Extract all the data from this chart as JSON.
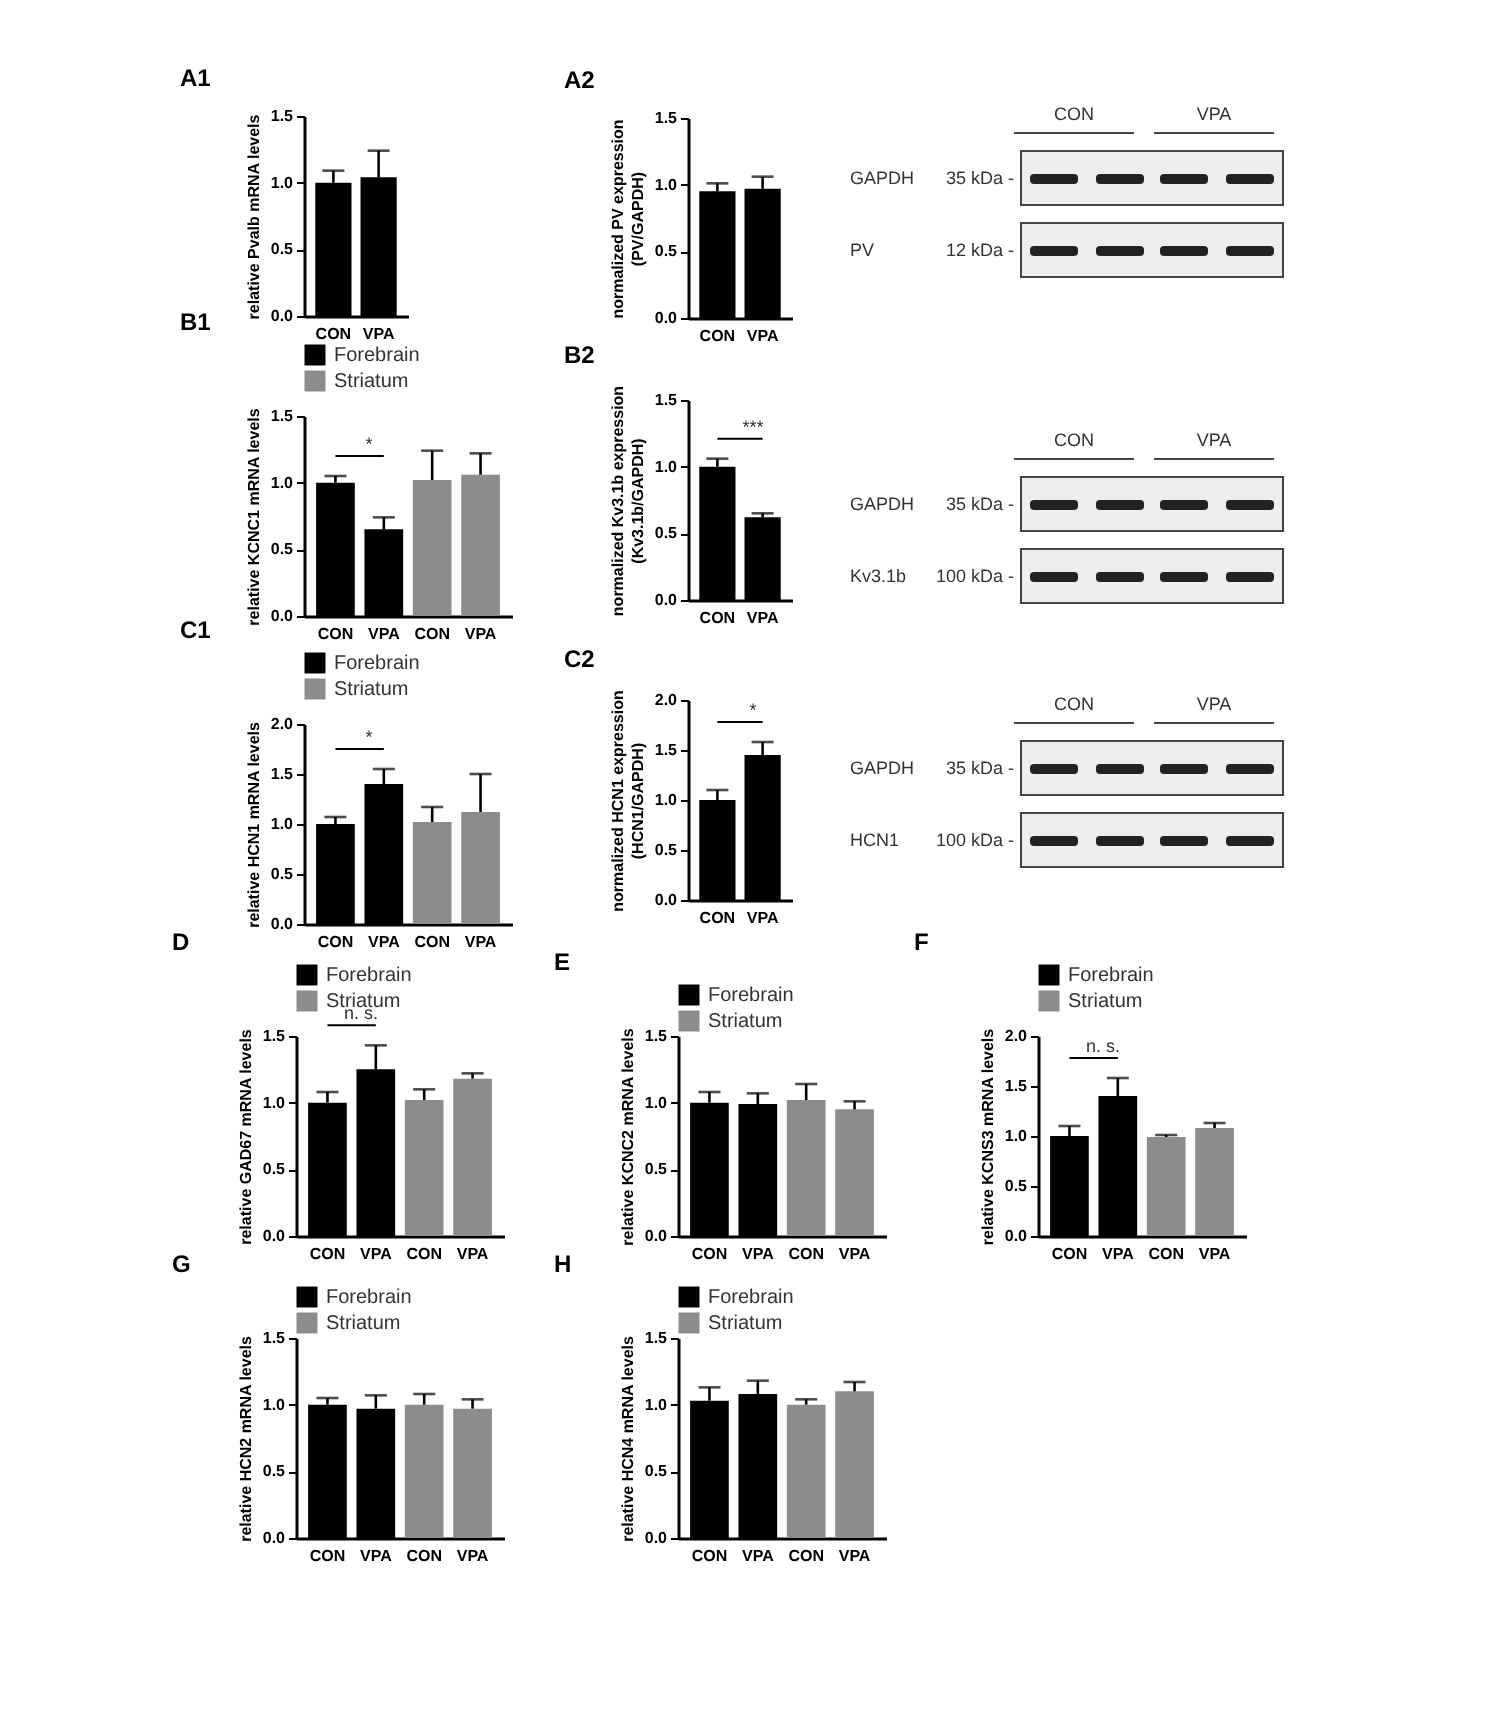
{
  "chart_data": [
    {
      "type": "bar",
      "title": "A1",
      "ylabel": "relative Pvalb mRNA levels",
      "categories": [
        "CON",
        "VPA"
      ],
      "ylim": [
        0,
        1.5
      ],
      "yticks": [
        {
          "value": 0,
          "label": "0.0"
        },
        {
          "value": 0.5,
          "label": "0.5"
        },
        {
          "value": 1,
          "label": "1.0"
        },
        {
          "value": 1.5,
          "label": "1.5"
        }
      ],
      "series": [
        {
          "color": "#000000",
          "values": [
            1.0,
            1.04
          ],
          "errors": [
            0.09,
            0.2
          ]
        }
      ]
    },
    {
      "type": "bar",
      "title": "A2",
      "ylabel": "normalized PV expression\n(PV/GAPDH)",
      "categories": [
        "CON",
        "VPA"
      ],
      "ylim": [
        0,
        1.5
      ],
      "yticks": [
        {
          "value": 0,
          "label": "0.0"
        },
        {
          "value": 0.5,
          "label": "0.5"
        },
        {
          "value": 1,
          "label": "1.0"
        },
        {
          "value": 1.5,
          "label": "1.5"
        }
      ],
      "series": [
        {
          "color": "#000000",
          "values": [
            0.95,
            0.97
          ],
          "errors": [
            0.06,
            0.09
          ]
        }
      ]
    },
    {
      "type": "other",
      "annotations": [
        "CON",
        "VPA",
        "GAPDH",
        "35 kDa -",
        "PV",
        "12 kDa -"
      ]
    },
    {
      "type": "bar",
      "title": "B1",
      "ylabel": "relative KCNC1 mRNA levels",
      "categories": [
        "CON",
        "VPA",
        "CON",
        "VPA"
      ],
      "ylim": [
        0,
        1.5
      ],
      "yticks": [
        {
          "value": 0,
          "label": "0.0"
        },
        {
          "value": 0.5,
          "label": "0.5"
        },
        {
          "value": 1,
          "label": "1.0"
        },
        {
          "value": 1.5,
          "label": "1.5"
        }
      ],
      "legend": "top",
      "annotations": [
        "*"
      ],
      "series": [
        {
          "name": "Forebrain",
          "color": "#000000",
          "values": [
            1.0,
            0.65,
            null,
            null
          ],
          "errors": [
            0.05,
            0.09,
            null,
            null
          ]
        },
        {
          "name": "Striatum",
          "color": "#8c8c8c",
          "values": [
            null,
            null,
            1.02,
            1.06
          ],
          "errors": [
            null,
            null,
            0.22,
            0.16
          ]
        }
      ]
    },
    {
      "type": "bar",
      "title": "B2",
      "ylabel": "normalized Kv3.1b expression\n(Kv3.1b/GAPDH)",
      "categories": [
        "CON",
        "VPA"
      ],
      "ylim": [
        0,
        1.5
      ],
      "yticks": [
        {
          "value": 0,
          "label": "0.0"
        },
        {
          "value": 0.5,
          "label": "0.5"
        },
        {
          "value": 1,
          "label": "1.0"
        },
        {
          "value": 1.5,
          "label": "1.5"
        }
      ],
      "annotations": [
        "***"
      ],
      "series": [
        {
          "color": "#000000",
          "values": [
            1.0,
            0.62
          ],
          "errors": [
            0.06,
            0.03
          ]
        }
      ]
    },
    {
      "type": "other",
      "annotations": [
        "CON",
        "VPA",
        "GAPDH",
        "35 kDa -",
        "Kv3.1b",
        "100 kDa -"
      ]
    },
    {
      "type": "bar",
      "title": "C1",
      "ylabel": "relative HCN1 mRNA levels",
      "categories": [
        "CON",
        "VPA",
        "CON",
        "VPA"
      ],
      "ylim": [
        0,
        2
      ],
      "yticks": [
        {
          "value": 0,
          "label": "0.0"
        },
        {
          "value": 0.5,
          "label": "0.5"
        },
        {
          "value": 1,
          "label": "1.0"
        },
        {
          "value": 1.5,
          "label": "1.5"
        },
        {
          "value": 2,
          "label": "2.0"
        }
      ],
      "legend": "top",
      "annotations": [
        "*"
      ],
      "series": [
        {
          "name": "Forebrain",
          "color": "#000000",
          "values": [
            1.0,
            1.4,
            null,
            null
          ],
          "errors": [
            0.07,
            0.15,
            null,
            null
          ]
        },
        {
          "name": "Striatum",
          "color": "#8c8c8c",
          "values": [
            null,
            null,
            1.02,
            1.12
          ],
          "errors": [
            null,
            null,
            0.15,
            0.38
          ]
        }
      ]
    },
    {
      "type": "bar",
      "title": "C2",
      "ylabel": "normalized HCN1 expression\n(HCN1/GAPDH)",
      "categories": [
        "CON",
        "VPA"
      ],
      "ylim": [
        0,
        2
      ],
      "yticks": [
        {
          "value": 0,
          "label": "0.0"
        },
        {
          "value": 0.5,
          "label": "0.5"
        },
        {
          "value": 1,
          "label": "1.0"
        },
        {
          "value": 1.5,
          "label": "1.5"
        },
        {
          "value": 2,
          "label": "2.0"
        }
      ],
      "annotations": [
        "*"
      ],
      "series": [
        {
          "color": "#000000",
          "values": [
            1.0,
            1.45
          ],
          "errors": [
            0.1,
            0.13
          ]
        }
      ]
    },
    {
      "type": "other",
      "annotations": [
        "CON",
        "VPA",
        "GAPDH",
        "35 kDa -",
        "HCN1",
        "100 kDa -"
      ]
    },
    {
      "type": "bar",
      "title": "D",
      "ylabel": "relative GAD67 mRNA levels",
      "categories": [
        "CON",
        "VPA",
        "CON",
        "VPA"
      ],
      "ylim": [
        0,
        1.5
      ],
      "yticks": [
        {
          "value": 0,
          "label": "0.0"
        },
        {
          "value": 0.5,
          "label": "0.5"
        },
        {
          "value": 1,
          "label": "1.0"
        },
        {
          "value": 1.5,
          "label": "1.5"
        }
      ],
      "legend": "top",
      "annotations": [
        "n. s."
      ],
      "series": [
        {
          "name": "Forebrain",
          "color": "#000000",
          "values": [
            1.0,
            1.25,
            null,
            null
          ],
          "errors": [
            0.08,
            0.18,
            null,
            null
          ]
        },
        {
          "name": "Striatum",
          "color": "#8c8c8c",
          "values": [
            null,
            null,
            1.02,
            1.18
          ],
          "errors": [
            null,
            null,
            0.08,
            0.04
          ]
        }
      ]
    },
    {
      "type": "bar",
      "title": "E",
      "ylabel": "relative KCNC2 mRNA levels",
      "categories": [
        "CON",
        "VPA",
        "CON",
        "VPA"
      ],
      "ylim": [
        0,
        1.5
      ],
      "yticks": [
        {
          "value": 0,
          "label": "0.0"
        },
        {
          "value": 0.5,
          "label": "0.5"
        },
        {
          "value": 1,
          "label": "1.0"
        },
        {
          "value": 1.5,
          "label": "1.5"
        }
      ],
      "legend": "top",
      "series": [
        {
          "name": "Forebrain",
          "color": "#000000",
          "values": [
            1.0,
            0.99,
            null,
            null
          ],
          "errors": [
            0.08,
            0.08,
            null,
            null
          ]
        },
        {
          "name": "Striatum",
          "color": "#8c8c8c",
          "values": [
            null,
            null,
            1.02,
            0.95
          ],
          "errors": [
            null,
            null,
            0.12,
            0.06
          ]
        }
      ]
    },
    {
      "type": "bar",
      "title": "F",
      "ylabel": "relative KCNS3 mRNA levels",
      "categories": [
        "CON",
        "VPA",
        "CON",
        "VPA"
      ],
      "ylim": [
        0,
        2
      ],
      "yticks": [
        {
          "value": 0,
          "label": "0.0"
        },
        {
          "value": 0.5,
          "label": "0.5"
        },
        {
          "value": 1,
          "label": "1.0"
        },
        {
          "value": 1.5,
          "label": "1.5"
        },
        {
          "value": 2,
          "label": "2.0"
        }
      ],
      "legend": "top",
      "annotations": [
        "n. s."
      ],
      "series": [
        {
          "name": "Forebrain",
          "color": "#000000",
          "values": [
            1.0,
            1.4,
            null,
            null
          ],
          "errors": [
            0.1,
            0.18,
            null,
            null
          ]
        },
        {
          "name": "Striatum",
          "color": "#8c8c8c",
          "values": [
            null,
            null,
            0.99,
            1.08
          ],
          "errors": [
            null,
            null,
            0.02,
            0.05
          ]
        }
      ]
    },
    {
      "type": "bar",
      "title": "G",
      "ylabel": "relative HCN2 mRNA levels",
      "categories": [
        "CON",
        "VPA",
        "CON",
        "VPA"
      ],
      "ylim": [
        0,
        1.5
      ],
      "yticks": [
        {
          "value": 0,
          "label": "0.0"
        },
        {
          "value": 0.5,
          "label": "0.5"
        },
        {
          "value": 1,
          "label": "1.0"
        },
        {
          "value": 1.5,
          "label": "1.5"
        }
      ],
      "legend": "top",
      "series": [
        {
          "name": "Forebrain",
          "color": "#000000",
          "values": [
            1.0,
            0.97,
            null,
            null
          ],
          "errors": [
            0.05,
            0.1,
            null,
            null
          ]
        },
        {
          "name": "Striatum",
          "color": "#8c8c8c",
          "values": [
            null,
            null,
            1.0,
            0.97
          ],
          "errors": [
            null,
            null,
            0.08,
            0.07
          ]
        }
      ]
    },
    {
      "type": "bar",
      "title": "H",
      "ylabel": "relative HCN4 mRNA levels",
      "categories": [
        "CON",
        "VPA",
        "CON",
        "VPA"
      ],
      "ylim": [
        0,
        1.5
      ],
      "yticks": [
        {
          "value": 0,
          "label": "0.0"
        },
        {
          "value": 0.5,
          "label": "0.5"
        },
        {
          "value": 1,
          "label": "1.0"
        },
        {
          "value": 1.5,
          "label": "1.5"
        }
      ],
      "legend": "top",
      "series": [
        {
          "name": "Forebrain",
          "color": "#000000",
          "values": [
            1.03,
            1.08,
            null,
            null
          ],
          "errors": [
            0.1,
            0.1,
            null,
            null
          ]
        },
        {
          "name": "Striatum",
          "color": "#8c8c8c",
          "values": [
            null,
            null,
            1.0,
            1.1
          ],
          "errors": [
            null,
            null,
            0.04,
            0.07
          ]
        }
      ]
    }
  ]
}
